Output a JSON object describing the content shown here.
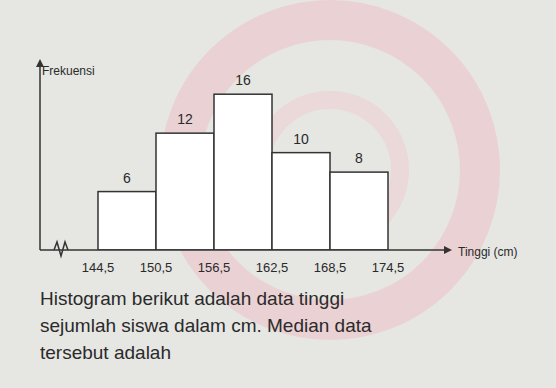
{
  "chart_data": {
    "type": "histogram",
    "y_label": "Frekuensi",
    "x_label": "Tinggi (cm)",
    "bins": [
      144.5,
      150.5,
      156.5,
      162.5,
      168.5,
      174.5
    ],
    "values": [
      6,
      12,
      16,
      10,
      8
    ],
    "color": "#ffffff",
    "xlim": [
      138.5,
      180.5
    ],
    "xticks": [
      {
        "value": 144.5,
        "label": "144,5"
      },
      {
        "value": 150.5,
        "label": "150,5"
      },
      {
        "value": 156.5,
        "label": "156,5"
      },
      {
        "value": 162.5,
        "label": "162,5"
      },
      {
        "value": 168.5,
        "label": "168,5"
      },
      {
        "value": 174.5,
        "label": "174,5"
      }
    ],
    "ylim": [
      0,
      19
    ],
    "tick_labels": "x",
    "data_labels": true,
    "grid": false,
    "annotations": [
      "Histogram berikut adalah data tinggi",
      "sejumlah siswa dalam cm. Median data",
      "tersebut adalah"
    ]
  }
}
